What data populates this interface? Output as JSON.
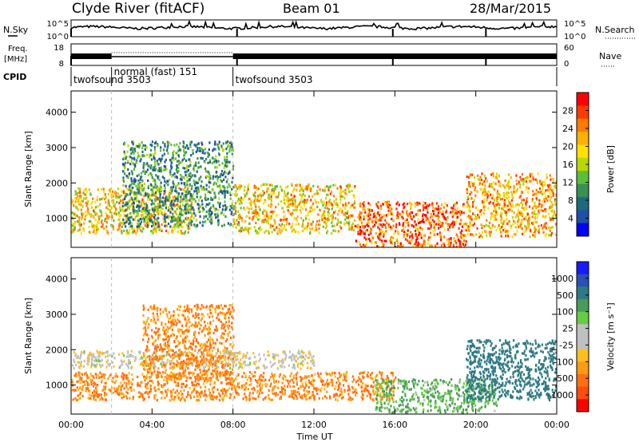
{
  "header": {
    "station": "Clyde River (fitACF)",
    "beam": "Beam 01",
    "date": "28/Mar/2015"
  },
  "summary": {
    "nsky_label": "N.Sky",
    "nsky_ticks": [
      "10^5",
      "10^0"
    ],
    "nsearch_label": "N.Search",
    "nsearch_ticks": [
      "10^5",
      "10^0"
    ],
    "freq_label_1": "Freq.",
    "freq_label_2": "[MHz]",
    "freq_ticks": [
      "18",
      "8"
    ],
    "nave_label": "Nave",
    "nave_ticks": [
      "60",
      "0"
    ],
    "cpid_label": "CPID",
    "cpid_segments": [
      {
        "start": 0.0,
        "end": 2.0,
        "label": "twofsound 3503"
      },
      {
        "start": 2.0,
        "end": 8.0,
        "label": "normal (fast) 151"
      },
      {
        "start": 8.0,
        "end": 24.0,
        "label": "twofsound 3503"
      }
    ]
  },
  "colorbars": {
    "power": {
      "title": "Power [dB]",
      "ticks": [
        "28",
        "24",
        "20",
        "16",
        "12",
        "8",
        "4"
      ],
      "colors": [
        "#ff0000",
        "#ff3a00",
        "#ff7a00",
        "#ffb000",
        "#ffe000",
        "#b8d800",
        "#5cbf3a",
        "#3a8f55",
        "#1d6a7c",
        "#1f4fa8",
        "#0000ff"
      ]
    },
    "velocity": {
      "title": "Velocity [m s⁻¹]",
      "ticks": [
        "1000",
        "500",
        "100",
        "25",
        "-25",
        "-100",
        "-500",
        "-1000"
      ],
      "colors": [
        "#1a1aff",
        "#2950b4",
        "#2e7a82",
        "#4a9a5a",
        "#66cc44",
        "#bfbfbf",
        "#bfbfbf",
        "#ffbe1e",
        "#ff9a14",
        "#ff7010",
        "#ff4a10",
        "#ff0000"
      ]
    }
  },
  "chart_data": {
    "type": "heatmap",
    "panels": [
      {
        "name": "power",
        "ylabel": "Slant Range [km]",
        "ylim": [
          180,
          4600
        ],
        "yticks": [
          "4000",
          "3000",
          "2000",
          "1000"
        ],
        "bands": [
          {
            "start_ut": 0.0,
            "end_ut": 6.0,
            "bottom_km": 600,
            "top_km": 1900,
            "level": 20
          },
          {
            "start_ut": 2.5,
            "end_ut": 8.0,
            "bottom_km": 800,
            "top_km": 3200,
            "level": 10
          },
          {
            "start_ut": 8.0,
            "end_ut": 14.0,
            "bottom_km": 600,
            "top_km": 2000,
            "level": 20
          },
          {
            "start_ut": 14.0,
            "end_ut": 19.5,
            "bottom_km": 200,
            "top_km": 1500,
            "level": 26
          },
          {
            "start_ut": 19.5,
            "end_ut": 24.0,
            "bottom_km": 500,
            "top_km": 2300,
            "level": 22
          }
        ]
      },
      {
        "name": "velocity",
        "ylabel": "Slant Range [km]",
        "ylim": [
          180,
          4600
        ],
        "yticks": [
          "4000",
          "3000",
          "2000",
          "1000"
        ],
        "bands": [
          {
            "start_ut": 0.0,
            "end_ut": 16.0,
            "bottom_km": 600,
            "top_km": 1400,
            "level": -100
          },
          {
            "start_ut": 0.0,
            "end_ut": 12.0,
            "bottom_km": 1500,
            "top_km": 2000,
            "level": 0
          },
          {
            "start_ut": 3.5,
            "end_ut": 8.0,
            "bottom_km": 1200,
            "top_km": 3300,
            "level": -100
          },
          {
            "start_ut": 15.0,
            "end_ut": 21.0,
            "bottom_km": 250,
            "top_km": 1200,
            "level": 100
          },
          {
            "start_ut": 19.5,
            "end_ut": 24.0,
            "bottom_km": 600,
            "top_km": 2300,
            "level": 600
          }
        ]
      }
    ],
    "xlabel": "Time UT",
    "x_ticks": [
      "00:00",
      "04:00",
      "08:00",
      "12:00",
      "16:00",
      "20:00",
      "00:00"
    ]
  }
}
